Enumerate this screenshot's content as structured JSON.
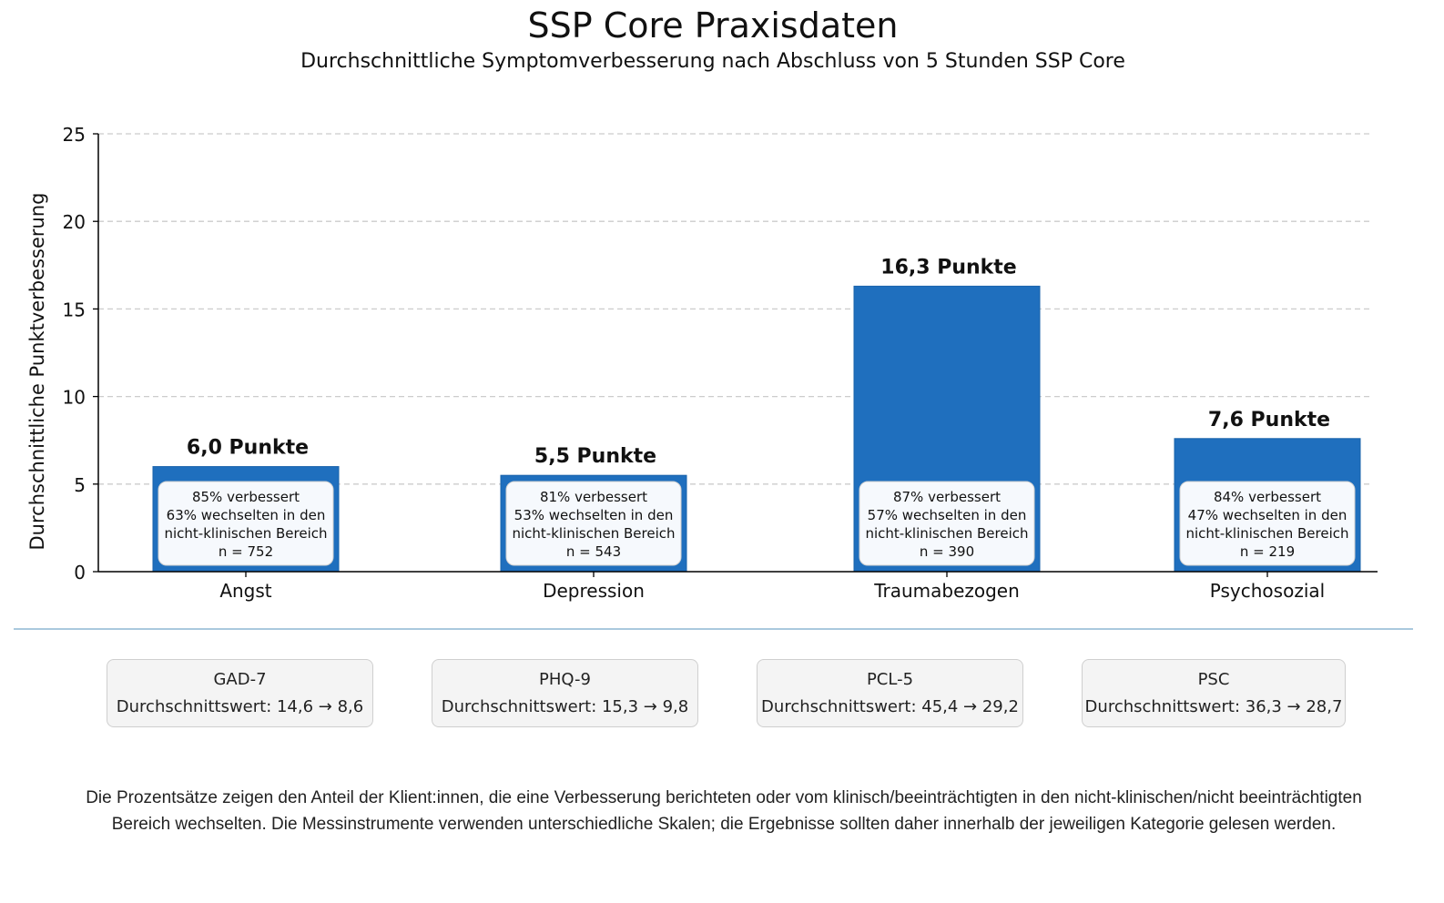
{
  "title": "SSP Core Praxisdaten",
  "subtitle": "Durchschnittliche Symptomverbesserung nach Abschluss von 5 Stunden SSP Core",
  "colors": {
    "bar": "#1f6fbe",
    "bar_edge": "#1a63ab",
    "grid": "#cccccc",
    "divider": "#aac9de"
  },
  "chart_data": {
    "type": "bar",
    "ylabel": "Durchschnittliche Punktverbesserung",
    "ylim": [
      0,
      25
    ],
    "yticks": [
      "0",
      "5",
      "10",
      "15",
      "20",
      "25"
    ],
    "grid": true,
    "categories": [
      "Angst",
      "Depression",
      "Traumabezogen",
      "Psychosozial"
    ],
    "values": [
      6.0,
      5.5,
      16.3,
      7.6
    ],
    "value_labels": [
      "6,0 Punkte",
      "5,5 Punkte",
      "16,3 Punkte",
      "7,6 Punkte"
    ],
    "annotations": [
      [
        "85% verbessert",
        "63% wechselten in den",
        "nicht-klinischen Bereich",
        "n = 752"
      ],
      [
        "81% verbessert",
        "53% wechselten in den",
        "nicht-klinischen Bereich",
        "n = 543"
      ],
      [
        "87% verbessert",
        "57% wechselten in den",
        "nicht-klinischen Bereich",
        "n = 390"
      ],
      [
        "84% verbessert",
        "47% wechselten in den",
        "nicht-klinischen Bereich",
        "n = 219"
      ]
    ]
  },
  "measures": [
    {
      "name": "GAD-7",
      "value": "Durchschnittswert: 14,6 → 8,6"
    },
    {
      "name": "PHQ-9",
      "value": "Durchschnittswert: 15,3 → 9,8"
    },
    {
      "name": "PCL-5",
      "value": "Durchschnittswert: 45,4 → 29,2"
    },
    {
      "name": "PSC",
      "value": "Durchschnittswert: 36,3 → 28,7"
    }
  ],
  "footnote": "Die Prozentsätze zeigen den Anteil der Klient:innen, die eine Verbesserung berichteten oder vom klinisch/beeinträchtigten in den nicht-klinischen/nicht beeinträchtigten Bereich wechselten. Die Messinstrumente verwenden unterschiedliche Skalen; die Ergebnisse sollten daher innerhalb der jeweiligen Kategorie gelesen werden."
}
